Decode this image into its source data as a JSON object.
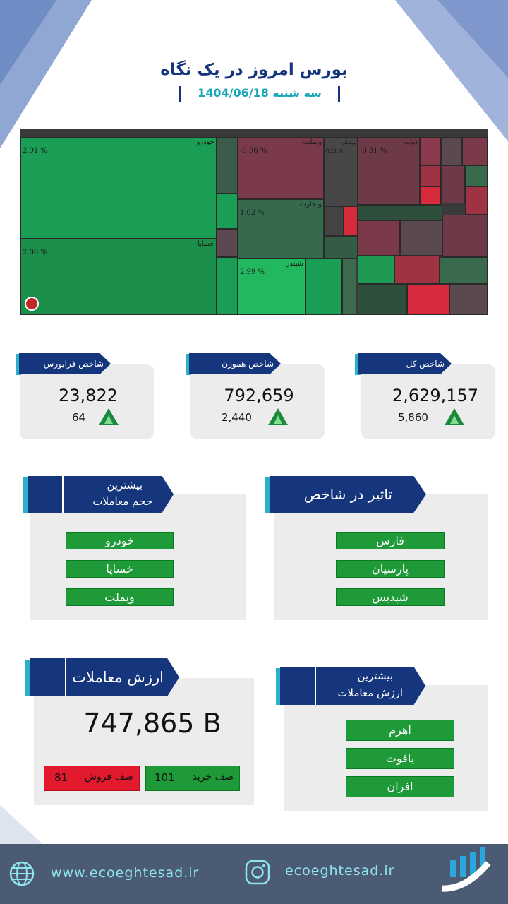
{
  "header": {
    "title": "بورس امروز در یک نگاه",
    "date": "سه شنبه 1404/06/18"
  },
  "treemap": {
    "tiles": [
      {
        "name": "خودرو",
        "pct": "2.91 %",
        "status": "positive"
      },
      {
        "name": "خساپا",
        "pct": "2.08 %",
        "status": "positive"
      },
      {
        "name": "وبملت",
        "pct": "-0.96 %",
        "status": "negative"
      },
      {
        "name": "وتجارت",
        "pct": "1.02 %",
        "status": "positive"
      },
      {
        "name": "شبندر",
        "pct": "2.99 %",
        "status": "positive"
      },
      {
        "name": "ذوب",
        "pct": "-0.31 %",
        "status": "negative"
      },
      {
        "name": "وبصادر",
        "pct": "0.21 %",
        "status": "neutral"
      }
    ]
  },
  "indices": [
    {
      "label": "شاخص کل",
      "value": "2,629,157",
      "change": "5,860",
      "direction": "up"
    },
    {
      "label": "شاخص هموزن",
      "value": "792,659",
      "change": "2,440",
      "direction": "up"
    },
    {
      "label": "شاخص فرابورس",
      "value": "23,822",
      "change": "64",
      "direction": "up"
    }
  ],
  "top_volume": {
    "title_line1": "بیشترین",
    "title_line2": "حجم معاملات",
    "items": [
      "خودرو",
      "خساپا",
      "وبملت"
    ]
  },
  "index_impact": {
    "title": "تاثیر در شاخص",
    "items": [
      "فارس",
      "پارسیان",
      "شپدیس"
    ]
  },
  "trade_value": {
    "title": "ارزش معاملات",
    "amount": "747,865 B",
    "buy_queue_label": "صف خرید",
    "buy_queue_value": "101",
    "sell_queue_label": "صف فروش",
    "sell_queue_value": "81"
  },
  "top_value": {
    "title_line1": "بیشترین",
    "title_line2": "ارزش معاملات",
    "items": [
      "اهرم",
      "یاقوت",
      "افران"
    ]
  },
  "footer": {
    "website": "www.ecoeghtesad.ir",
    "instagram": "ecoeghtesad.ir"
  },
  "colors": {
    "brand": "#15367c",
    "accent": "#2ab0c8",
    "positive": "#1f9a38",
    "negative": "#e3192d",
    "footer": "#4b5b73"
  },
  "icons": [
    "globe-icon",
    "instagram-icon",
    "logo-icon",
    "up-arrow-icon"
  ]
}
